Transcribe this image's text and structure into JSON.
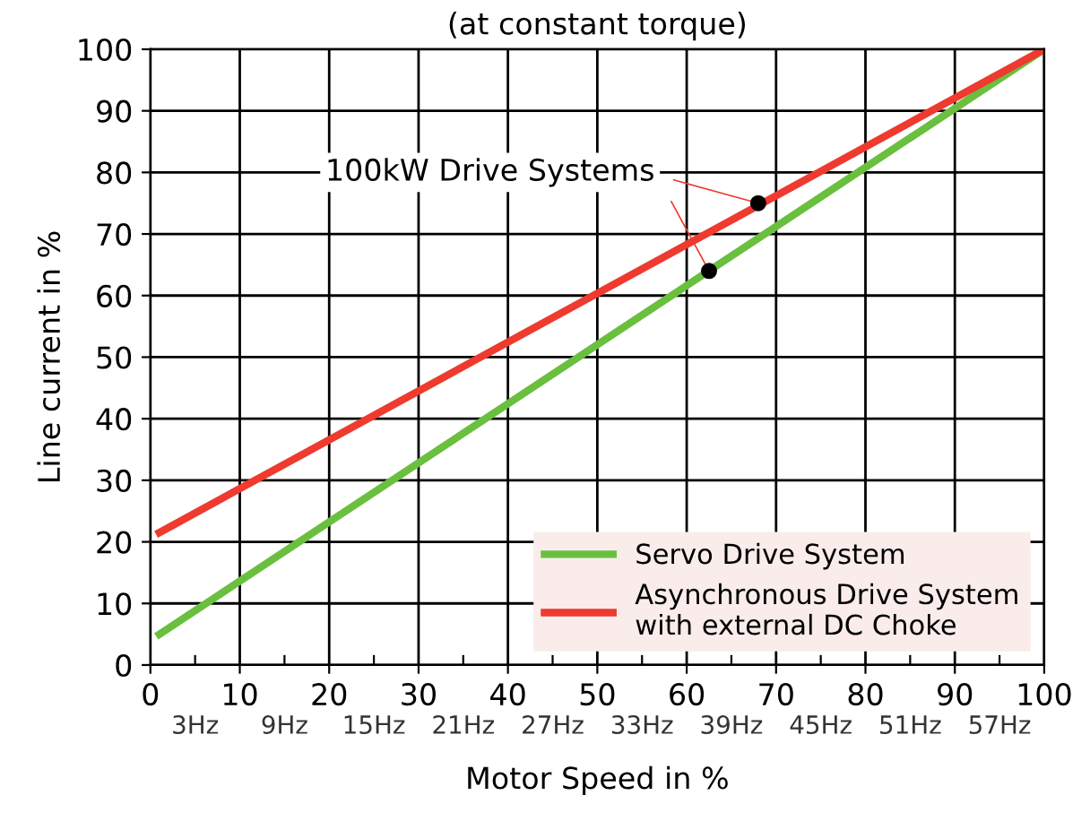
{
  "chart_data": {
    "type": "line",
    "title": "(at constant torque)",
    "xlabel": "Motor Speed in %",
    "ylabel": "Line current in %",
    "xlim": [
      0,
      100
    ],
    "ylim": [
      0,
      100
    ],
    "xticks": [
      0,
      10,
      20,
      30,
      40,
      50,
      60,
      70,
      80,
      90,
      100
    ],
    "yticks": [
      0,
      10,
      20,
      30,
      40,
      50,
      60,
      70,
      80,
      90,
      100
    ],
    "x2lim": [
      0,
      60
    ],
    "x2ticks": [
      {
        "value": 3,
        "label": "3Hz"
      },
      {
        "value": 9,
        "label": "9Hz"
      },
      {
        "value": 15,
        "label": "15Hz"
      },
      {
        "value": 21,
        "label": "21Hz"
      },
      {
        "value": 27,
        "label": "27Hz"
      },
      {
        "value": 33,
        "label": "33Hz"
      },
      {
        "value": 39,
        "label": "39Hz"
      },
      {
        "value": 45,
        "label": "45Hz"
      },
      {
        "value": 51,
        "label": "51Hz"
      },
      {
        "value": 57,
        "label": "57Hz"
      }
    ],
    "grid": true,
    "legend": "bottom right",
    "line_style": "solid",
    "series": [
      {
        "name": "Servo Drive System",
        "color": "#6abf3f",
        "x": [
          1,
          100
        ],
        "values": [
          5,
          100
        ]
      },
      {
        "name": "Asynchronous Drive System\nwith external DC Choke",
        "color": "#ee3a2f",
        "x": [
          1,
          100
        ],
        "values": [
          21.5,
          100
        ]
      },
      {
        "type": "scatter",
        "color": "#000000",
        "x": [
          68,
          62.5
        ],
        "values": [
          75,
          64
        ],
        "marker": "circle"
      }
    ],
    "annotations": [
      {
        "text": "100kW Drive Systems",
        "x": 68,
        "y": 75
      }
    ]
  }
}
